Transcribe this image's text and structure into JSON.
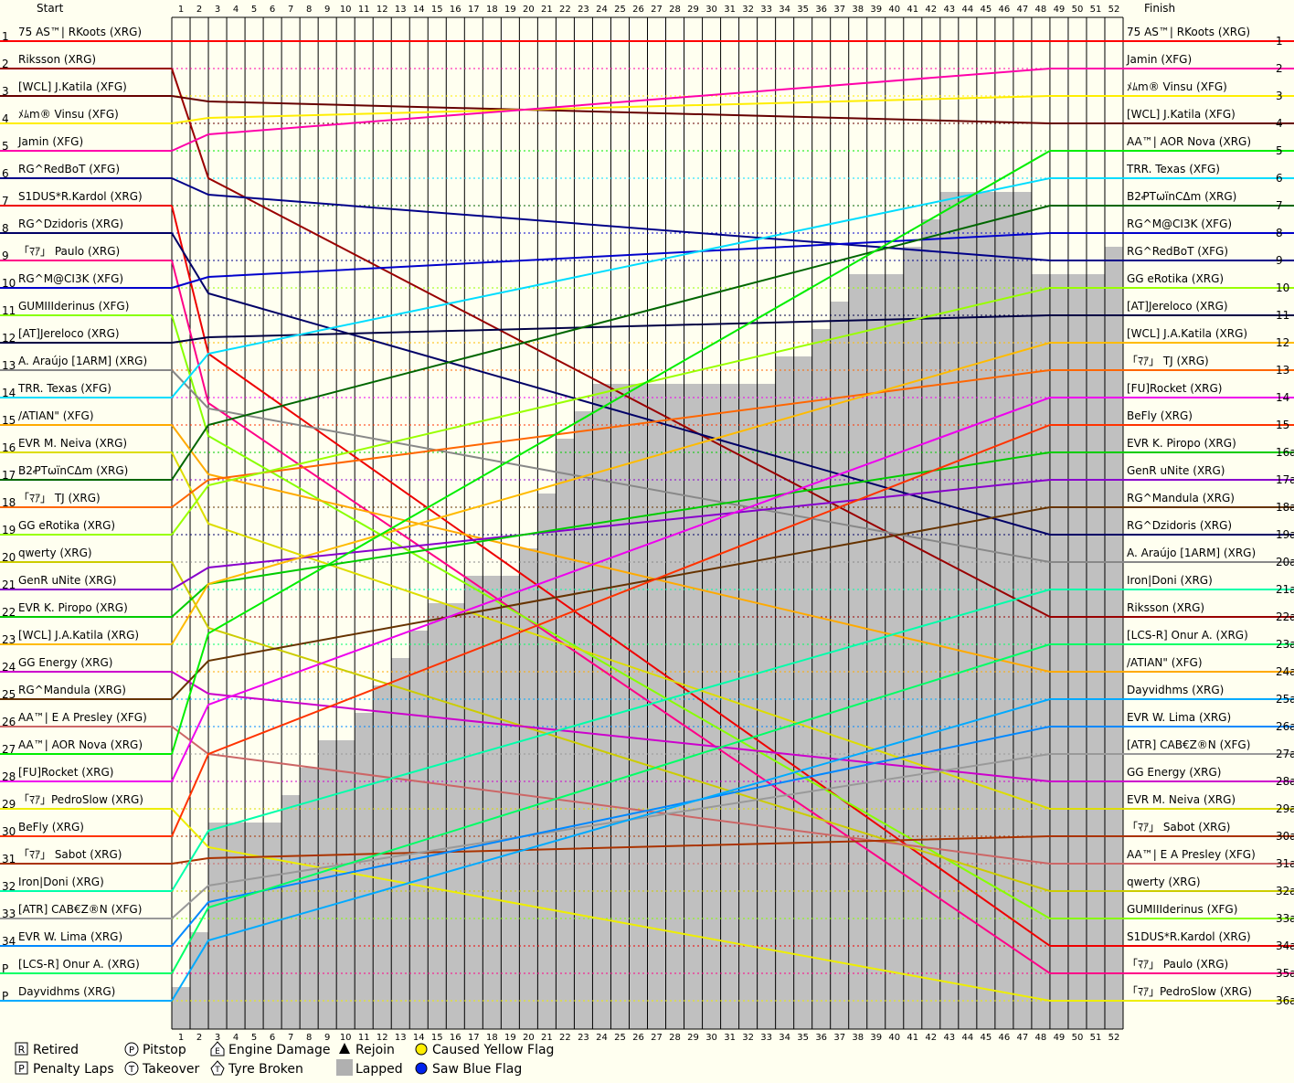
{
  "chart_data": {
    "type": "line",
    "header": {
      "start": "Start",
      "finish": "Finish"
    },
    "laps": 52,
    "positions": 36,
    "start_grid": [
      {
        "pos": "1",
        "name": "75 AS™| RKoots (XRG)",
        "color": "#ff0000"
      },
      {
        "pos": "2",
        "name": "Riksson (XRG)",
        "color": "#990000"
      },
      {
        "pos": "3",
        "name": "[WCL] J.Katila (XFG)",
        "color": "#660000"
      },
      {
        "pos": "4",
        "name": "ﾒﾑm® Vinsu (XFG)",
        "color": "#ffee00"
      },
      {
        "pos": "5",
        "name": "Jamin (XFG)",
        "color": "#ff00aa"
      },
      {
        "pos": "6",
        "name": "RG^RedBoT (XFG)",
        "color": "#000088"
      },
      {
        "pos": "7",
        "name": "S1DUS*R.Kardol (XRG)",
        "color": "#ee0000"
      },
      {
        "pos": "8",
        "name": "RG^Dzidoris (XRG)",
        "color": "#000066"
      },
      {
        "pos": "9",
        "name": "「ﾏｱ」 Paulo (XRG)",
        "color": "#ff0088"
      },
      {
        "pos": "10",
        "name": "RG^M@CI3K (XFG)",
        "color": "#0000cc"
      },
      {
        "pos": "11",
        "name": "GUMIIIderinus (XFG)",
        "color": "#88ff00"
      },
      {
        "pos": "12",
        "name": "[AT]Jereloco (XRG)",
        "color": "#000044"
      },
      {
        "pos": "13",
        "name": "A. Araújo [1ARM] (XRG)",
        "color": "#888888"
      },
      {
        "pos": "14",
        "name": "TRR. Texas (XFG)",
        "color": "#00ddff"
      },
      {
        "pos": "15",
        "name": "/ATIAN\" (XFG)",
        "color": "#ffaa00"
      },
      {
        "pos": "16",
        "name": "EVR M. Neiva (XRG)",
        "color": "#dddd00"
      },
      {
        "pos": "17",
        "name": "B2ꝒTωïnCΔm (XRG)",
        "color": "#006600"
      },
      {
        "pos": "18",
        "name": "「ﾏｱ」 TJ (XRG)",
        "color": "#ff6600"
      },
      {
        "pos": "19",
        "name": "GG eRotika (XRG)",
        "color": "#99ff00"
      },
      {
        "pos": "20",
        "name": "qwerty (XRG)",
        "color": "#cccc00"
      },
      {
        "pos": "21",
        "name": "GenR uNite (XRG)",
        "color": "#8800cc"
      },
      {
        "pos": "22",
        "name": "EVR K. Piropo (XRG)",
        "color": "#00cc00"
      },
      {
        "pos": "23",
        "name": "[WCL] J.A.Katila (XRG)",
        "color": "#ffbb00"
      },
      {
        "pos": "24",
        "name": "GG Energy (XRG)",
        "color": "#cc00cc"
      },
      {
        "pos": "25",
        "name": "RG^Mandula (XRG)",
        "color": "#663300"
      },
      {
        "pos": "26",
        "name": "AA™| E A Presley (XFG)",
        "color": "#cc6666"
      },
      {
        "pos": "27",
        "name": "AA™| AOR Nova (XRG)",
        "color": "#00ee00"
      },
      {
        "pos": "28",
        "name": "[FU]Rocket (XRG)",
        "color": "#ee00ee"
      },
      {
        "pos": "29",
        "name": "「ﾏｱ」PedroSlow (XRG)",
        "color": "#eeee00"
      },
      {
        "pos": "30",
        "name": "BeFly (XRG)",
        "color": "#ff3300"
      },
      {
        "pos": "31",
        "name": "「ﾏｱ」 Sabot (XRG)",
        "color": "#aa3300"
      },
      {
        "pos": "32",
        "name": "Iron|Doni (XRG)",
        "color": "#00ffaa"
      },
      {
        "pos": "33",
        "name": "[ATR] CAB€Z®N (XFG)",
        "color": "#999999"
      },
      {
        "pos": "34",
        "name": "EVR W. Lima (XRG)",
        "color": "#0088ff"
      },
      {
        "pos": "P",
        "name": "[LCS-R] Onur A. (XRG)",
        "color": "#00ff66"
      },
      {
        "pos": "P",
        "name": "Dayvidhms (XRG)",
        "color": "#00aaff"
      }
    ],
    "finish_order": [
      {
        "pos": "1",
        "name": "75 AS™| RKoots (XRG)",
        "color": "#ff0000"
      },
      {
        "pos": "2",
        "name": "Jamin (XFG)",
        "color": "#ff00aa"
      },
      {
        "pos": "3",
        "name": "ﾒﾑm® Vinsu (XFG)",
        "color": "#ffee00"
      },
      {
        "pos": "4",
        "name": "[WCL] J.Katila (XFG)",
        "color": "#660000"
      },
      {
        "pos": "5",
        "name": "AA™| AOR Nova (XRG)",
        "color": "#00ee00"
      },
      {
        "pos": "6",
        "name": "TRR. Texas (XFG)",
        "color": "#00ddff"
      },
      {
        "pos": "7",
        "name": "B2ꝒTωïnCΔm (XRG)",
        "color": "#006600"
      },
      {
        "pos": "8",
        "name": "RG^M@CI3K (XFG)",
        "color": "#0000cc"
      },
      {
        "pos": "9",
        "name": "RG^RedBoT (XFG)",
        "color": "#000088"
      },
      {
        "pos": "10",
        "name": "GG eRotika (XRG)",
        "color": "#99ff00"
      },
      {
        "pos": "11",
        "name": "[AT]Jereloco (XRG)",
        "color": "#000044"
      },
      {
        "pos": "12",
        "name": "[WCL] J.A.Katila (XRG)",
        "color": "#ffbb00"
      },
      {
        "pos": "13",
        "name": "「ﾏｱ」 TJ (XRG)",
        "color": "#ff6600"
      },
      {
        "pos": "14",
        "name": "[FU]Rocket (XRG)",
        "color": "#ee00ee"
      },
      {
        "pos": "15",
        "name": "BeFly (XRG)",
        "color": "#ff3300"
      },
      {
        "pos": "16a",
        "name": "EVR K. Piropo (XRG)",
        "color": "#00cc00"
      },
      {
        "pos": "17a",
        "name": "GenR uNite (XRG)",
        "color": "#8800cc"
      },
      {
        "pos": "18a",
        "name": "RG^Mandula (XRG)",
        "color": "#663300"
      },
      {
        "pos": "19a",
        "name": "RG^Dzidoris (XRG)",
        "color": "#000066"
      },
      {
        "pos": "20a",
        "name": "A. Araújo [1ARM] (XRG)",
        "color": "#888888"
      },
      {
        "pos": "21a",
        "name": "Iron|Doni (XRG)",
        "color": "#00ffaa"
      },
      {
        "pos": "22a",
        "name": "Riksson (XRG)",
        "color": "#990000"
      },
      {
        "pos": "23a",
        "name": "[LCS-R] Onur A. (XRG)",
        "color": "#00ff66"
      },
      {
        "pos": "24a",
        "name": "/ATIAN\" (XFG)",
        "color": "#ffaa00"
      },
      {
        "pos": "25a",
        "name": "Dayvidhms (XRG)",
        "color": "#00aaff"
      },
      {
        "pos": "26a",
        "name": "EVR W. Lima (XRG)",
        "color": "#0088ff"
      },
      {
        "pos": "27a",
        "name": "[ATR] CAB€Z®N (XFG)",
        "color": "#999999"
      },
      {
        "pos": "28a",
        "name": "GG Energy (XRG)",
        "color": "#cc00cc"
      },
      {
        "pos": "29a",
        "name": "EVR M. Neiva (XRG)",
        "color": "#dddd00"
      },
      {
        "pos": "30a",
        "name": "「ﾏｱ」 Sabot (XRG)",
        "color": "#aa3300"
      },
      {
        "pos": "31a",
        "name": "AA™| E A Presley (XFG)",
        "color": "#cc6666"
      },
      {
        "pos": "32a",
        "name": "qwerty (XRG)",
        "color": "#cccc00"
      },
      {
        "pos": "33a",
        "name": "GUMIIIderinus (XFG)",
        "color": "#88ff00"
      },
      {
        "pos": "34a",
        "name": "S1DUS*R.Kardol (XRG)",
        "color": "#ee0000"
      },
      {
        "pos": "35a",
        "name": "「ﾏｱ」 Paulo (XRG)",
        "color": "#ff0088"
      },
      {
        "pos": "36a",
        "name": "「ﾏｱ」PedroSlow (XRG)",
        "color": "#eeee00"
      }
    ],
    "lapped_by_lap": [
      34,
      32,
      28,
      28,
      28,
      28,
      27,
      26,
      25,
      25,
      24,
      23,
      22,
      21,
      20,
      20,
      19,
      19,
      19,
      18,
      16,
      14,
      13,
      12,
      12,
      12,
      12,
      12,
      12,
      12,
      12,
      12,
      12,
      11,
      11,
      10,
      9,
      8,
      8,
      8,
      7,
      6,
      5,
      5,
      5,
      5,
      5,
      8,
      8,
      8,
      8,
      7
    ],
    "legend": [
      {
        "symbol": "R",
        "label": "Retired",
        "kind": "box"
      },
      {
        "symbol": "P",
        "label": "Penalty Laps",
        "kind": "box"
      },
      {
        "symbol": "P",
        "label": "Pitstop",
        "kind": "circle"
      },
      {
        "symbol": "T",
        "label": "Takeover",
        "kind": "circle"
      },
      {
        "symbol": "E",
        "label": "Engine Damage",
        "kind": "house"
      },
      {
        "symbol": "T",
        "label": "Tyre Broken",
        "kind": "star"
      },
      {
        "symbol": "▲",
        "label": "Rejoin",
        "kind": "tri"
      },
      {
        "symbol": "",
        "label": "Lapped",
        "kind": "gray"
      },
      {
        "symbol": "",
        "label": "Caused Yellow Flag",
        "kind": "yellow"
      },
      {
        "symbol": "",
        "label": "Saw Blue Flag",
        "kind": "blue"
      }
    ]
  }
}
